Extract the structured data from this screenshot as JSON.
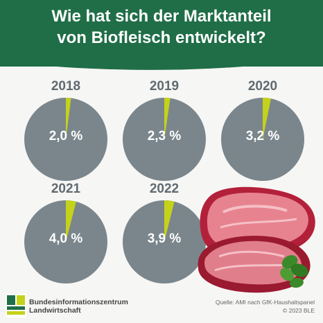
{
  "header": {
    "title_line1": "Wie hat sich der Marktanteil",
    "title_line2": "von Biofleisch entwickelt?"
  },
  "chart_data": {
    "type": "pie",
    "unit": "%",
    "title": "Wie hat sich der Marktanteil von Biofleisch entwickelt?",
    "pies": [
      {
        "year": "2018",
        "value": 2.0,
        "label": "2,0 %"
      },
      {
        "year": "2019",
        "value": 2.3,
        "label": "2,3 %"
      },
      {
        "year": "2020",
        "value": 3.2,
        "label": "3,2 %"
      },
      {
        "year": "2021",
        "value": 4.0,
        "label": "4,0 %"
      },
      {
        "year": "2022",
        "value": 3.9,
        "label": "3,9 %"
      }
    ],
    "colors": {
      "share": "#c4d21a",
      "rest": "#7a868c"
    }
  },
  "footer": {
    "org_line1": "Bundesinformationszentrum",
    "org_line2": "Landwirtschaft",
    "source_line1": "Quelle: AMI nach GfK-Haushaltspanel",
    "source_line2": "© 2023 BLE"
  },
  "colors": {
    "header": "#1f6e47",
    "background": "#f6f6f4"
  }
}
